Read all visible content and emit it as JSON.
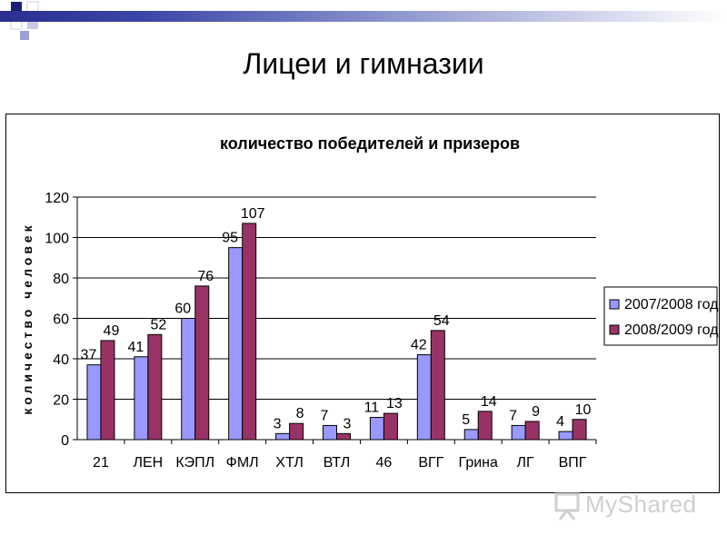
{
  "slide": {
    "title": "Лицеи и гимназии",
    "watermark": "MyShared"
  },
  "chart_data": {
    "type": "bar",
    "title": "количество победителей и призеров",
    "xlabel": "",
    "ylabel": "количество человек",
    "ylim": [
      0,
      120
    ],
    "yticks": [
      0,
      20,
      40,
      60,
      80,
      100,
      120
    ],
    "grid": true,
    "legend_position": "right",
    "categories": [
      "21",
      "ЛЕН",
      "КЭПЛ",
      "ФМЛ",
      "ХТЛ",
      "ВТЛ",
      "46",
      "ВГГ",
      "Грина",
      "ЛГ",
      "ВПГ"
    ],
    "series": [
      {
        "name": "2007/2008 год",
        "color": "#9999ff",
        "values": [
          37,
          41,
          60,
          95,
          3,
          7,
          11,
          42,
          5,
          7,
          4
        ]
      },
      {
        "name": "2008/2009 год",
        "color": "#993366",
        "values": [
          49,
          52,
          76,
          107,
          8,
          3,
          13,
          54,
          14,
          9,
          10
        ]
      }
    ]
  }
}
